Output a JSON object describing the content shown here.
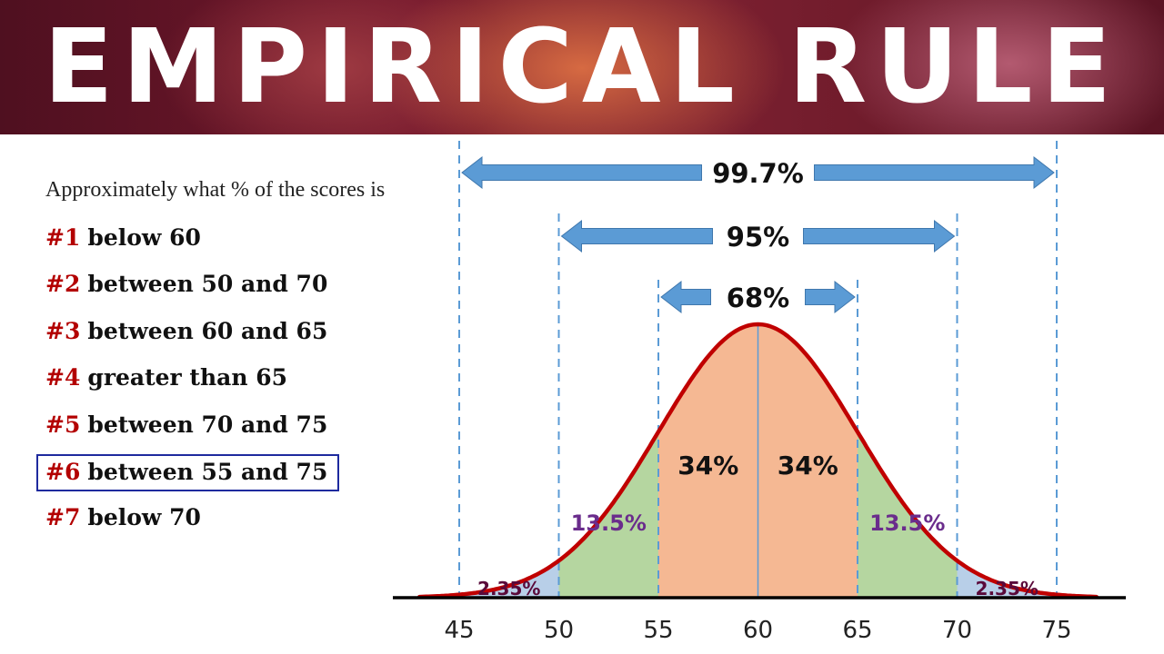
{
  "banner": {
    "title": "EMPIRICAL RULE"
  },
  "question": "Approximately what % of the scores is",
  "items": [
    {
      "num": "#1",
      "text": "below 60"
    },
    {
      "num": "#2",
      "text": "between 50 and 70"
    },
    {
      "num": "#3",
      "text": "between 60 and 65"
    },
    {
      "num": "#4",
      "text": "greater than 65"
    },
    {
      "num": "#5",
      "text": "between 70 and 75"
    },
    {
      "num": "#6",
      "text": "between 55 and 75"
    },
    {
      "num": "#7",
      "text": "below 70"
    }
  ],
  "highlighted_item": 6,
  "colors": {
    "curve": "#c00000",
    "center_region": "#f5b893",
    "mid_region": "#b5d6a0",
    "tail_region": "#b8cfe8",
    "arrow": "#5b9bd5",
    "dashed_line": "#5b9bd5",
    "tail_label": "#5a0a3a",
    "mid_label": "#6a2c8c",
    "item_number": "#b30000"
  },
  "chart_data": {
    "type": "area",
    "title": "",
    "xlabel": "",
    "ylabel": "",
    "mean": 60,
    "sd": 5,
    "xlim": [
      42.5,
      77.5
    ],
    "x_ticks": [
      45,
      50,
      55,
      60,
      65,
      70,
      75
    ],
    "x_tick_labels": [
      "45",
      "50",
      "55",
      "60",
      "65",
      "70",
      "75"
    ],
    "regions": [
      {
        "from": 45,
        "to": 50,
        "label": "2.35%",
        "value": 2.35
      },
      {
        "from": 50,
        "to": 55,
        "label": "13.5%",
        "value": 13.5
      },
      {
        "from": 55,
        "to": 60,
        "label": "34%",
        "value": 34
      },
      {
        "from": 60,
        "to": 65,
        "label": "34%",
        "value": 34
      },
      {
        "from": 65,
        "to": 70,
        "label": "13.5%",
        "value": 13.5
      },
      {
        "from": 70,
        "to": 75,
        "label": "2.35%",
        "value": 2.35
      }
    ],
    "intervals": [
      {
        "from": 55,
        "to": 65,
        "label": "68%",
        "value": 68
      },
      {
        "from": 50,
        "to": 70,
        "label": "95%",
        "value": 95
      },
      {
        "from": 45,
        "to": 75,
        "label": "99.7%",
        "value": 99.7
      }
    ]
  }
}
